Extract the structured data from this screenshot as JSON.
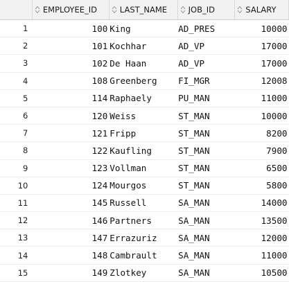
{
  "grid": {
    "columns": [
      {
        "label": "EMPLOYEE_ID",
        "icon": "sort-icon"
      },
      {
        "label": "LAST_NAME",
        "icon": "sort-icon"
      },
      {
        "label": "JOB_ID",
        "icon": "sort-icon"
      },
      {
        "label": "SALARY",
        "icon": "sort-icon"
      }
    ],
    "rows": [
      {
        "n": "1",
        "employee_id": "100",
        "last_name": "King",
        "job_id": "AD_PRES",
        "salary": "10000"
      },
      {
        "n": "2",
        "employee_id": "101",
        "last_name": "Kochhar",
        "job_id": "AD_VP",
        "salary": "17000"
      },
      {
        "n": "3",
        "employee_id": "102",
        "last_name": "De Haan",
        "job_id": "AD_VP",
        "salary": "17000"
      },
      {
        "n": "4",
        "employee_id": "108",
        "last_name": "Greenberg",
        "job_id": "FI_MGR",
        "salary": "12008"
      },
      {
        "n": "5",
        "employee_id": "114",
        "last_name": "Raphaely",
        "job_id": "PU_MAN",
        "salary": "11000"
      },
      {
        "n": "6",
        "employee_id": "120",
        "last_name": "Weiss",
        "job_id": "ST_MAN",
        "salary": "10000"
      },
      {
        "n": "7",
        "employee_id": "121",
        "last_name": "Fripp",
        "job_id": "ST_MAN",
        "salary": "8200"
      },
      {
        "n": "8",
        "employee_id": "122",
        "last_name": "Kaufling",
        "job_id": "ST_MAN",
        "salary": "7900"
      },
      {
        "n": "9",
        "employee_id": "123",
        "last_name": "Vollman",
        "job_id": "ST_MAN",
        "salary": "6500"
      },
      {
        "n": "10",
        "employee_id": "124",
        "last_name": "Mourgos",
        "job_id": "ST_MAN",
        "salary": "5800"
      },
      {
        "n": "11",
        "employee_id": "145",
        "last_name": "Russell",
        "job_id": "SA_MAN",
        "salary": "14000"
      },
      {
        "n": "12",
        "employee_id": "146",
        "last_name": "Partners",
        "job_id": "SA_MAN",
        "salary": "13500"
      },
      {
        "n": "13",
        "employee_id": "147",
        "last_name": "Errazuriz",
        "job_id": "SA_MAN",
        "salary": "12000"
      },
      {
        "n": "14",
        "employee_id": "148",
        "last_name": "Cambrault",
        "job_id": "SA_MAN",
        "salary": "11000"
      },
      {
        "n": "15",
        "employee_id": "149",
        "last_name": "Zlotkey",
        "job_id": "SA_MAN",
        "salary": "10500"
      }
    ]
  },
  "colors": {
    "header_bg": "#f2f2f2",
    "row_border": "#ececec",
    "sort_icon": "#9a9a9a"
  }
}
